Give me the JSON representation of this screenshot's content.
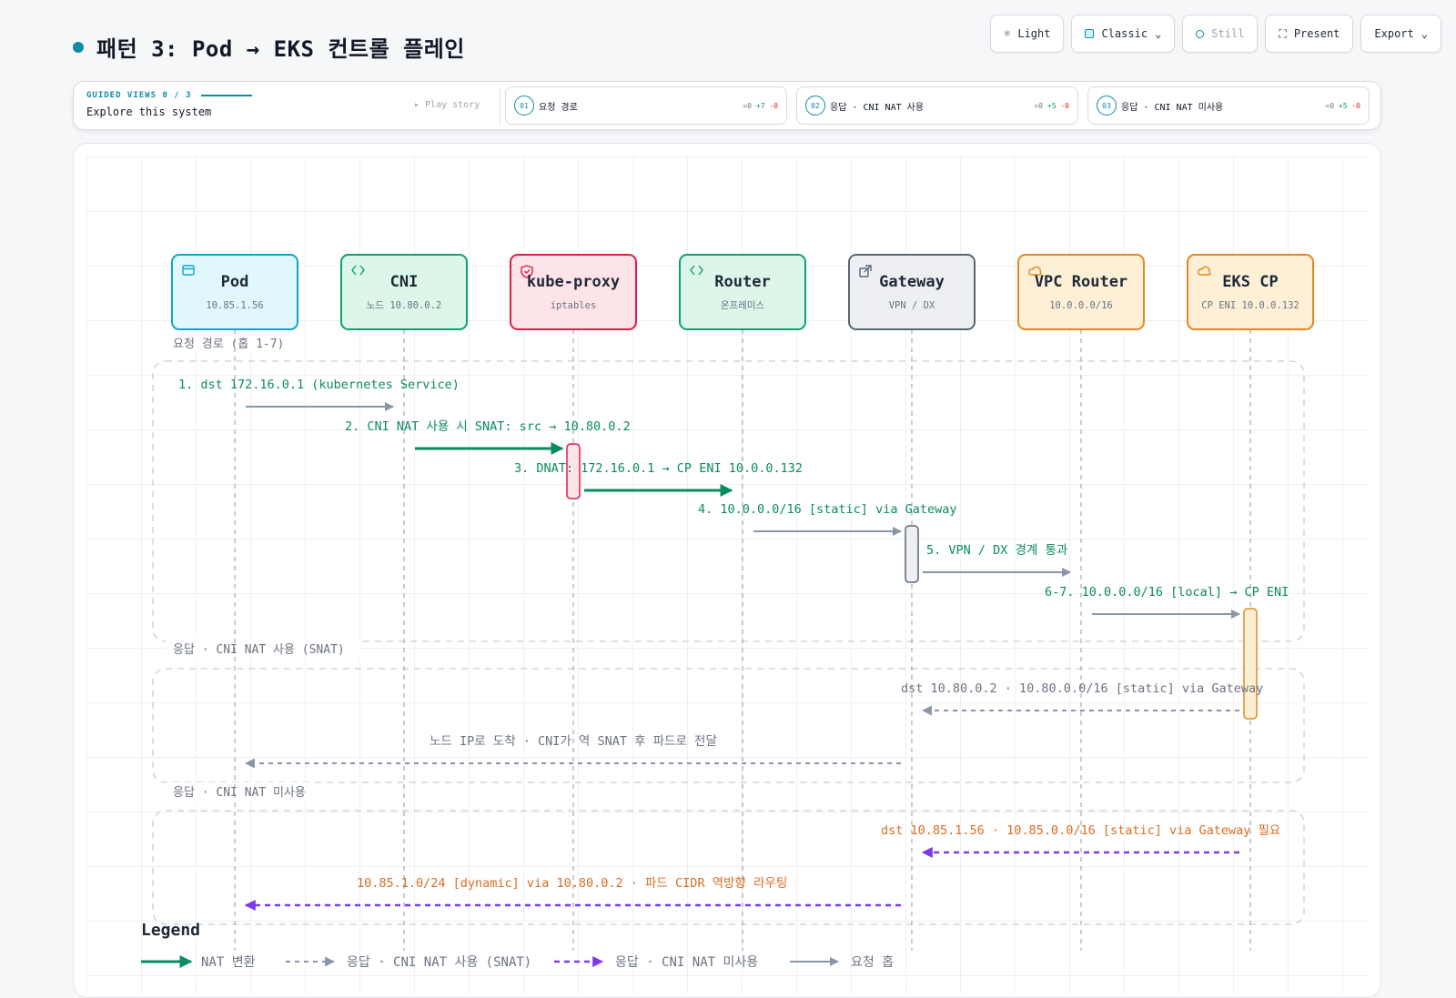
{
  "header": {
    "title": "패턴 3: Pod → EKS 컨트롤 플레인"
  },
  "toolbar": {
    "light": "Light",
    "classic": "Classic",
    "still": "Still",
    "present": "Present",
    "export": "Export"
  },
  "guided": {
    "caption": "GUIDED VIEWS 0 / 3",
    "subtitle": "Explore this system",
    "play": "▸ Play story",
    "stories": [
      {
        "num": "01",
        "label": "요청 경로",
        "eq": "=0",
        "add": "+7",
        "del": "-0"
      },
      {
        "num": "02",
        "label": "응답 · CNI NAT 사용",
        "eq": "=0",
        "add": "+5",
        "del": "-0"
      },
      {
        "num": "03",
        "label": "응답 · CNI NAT 미사용",
        "eq": "=0",
        "add": "+5",
        "del": "-0"
      }
    ]
  },
  "colors": {
    "teal": "#0e8aa8",
    "green": "#0b8a63",
    "gray": "#8a96a8",
    "orange": "#dd6b20",
    "purple": "#7c3aed",
    "red": "#e11d48"
  },
  "participants": [
    {
      "id": "pod",
      "name": "Pod",
      "sub": "10.85.1.56",
      "icon": "window-icon",
      "stroke": "#0ea5c6",
      "fill": "#e0f7fc"
    },
    {
      "id": "cni",
      "name": "CNI",
      "sub": "노드 10.80.0.2",
      "icon": "code-icon",
      "stroke": "#10a070",
      "fill": "#dcf6ea"
    },
    {
      "id": "kubeproxy",
      "name": "kube-proxy",
      "sub": "iptables",
      "icon": "shield-icon",
      "stroke": "#e11d48",
      "fill": "#fde4e8"
    },
    {
      "id": "router",
      "name": "Router",
      "sub": "온프레미스",
      "icon": "code-icon",
      "stroke": "#10a070",
      "fill": "#dcf6ea"
    },
    {
      "id": "gateway",
      "name": "Gateway",
      "sub": "VPN / DX",
      "icon": "external-link-icon",
      "stroke": "#5b6675",
      "fill": "#edeff3"
    },
    {
      "id": "vpcrouter",
      "name": "VPC Router",
      "sub": "10.0.0.0/16",
      "icon": "cloud-icon",
      "stroke": "#e08a1e",
      "fill": "#fdf0d6"
    },
    {
      "id": "ekscp",
      "name": "EKS CP",
      "sub": "CP ENI 10.0.0.132",
      "icon": "cloud-icon",
      "stroke": "#e08a1e",
      "fill": "#fdf0d6"
    }
  ],
  "groups": [
    {
      "label": "요청 경로 (홉 1-7)"
    },
    {
      "label": "응답 · CNI NAT 사용 (SNAT)"
    },
    {
      "label": "응답 · CNI NAT 미사용"
    }
  ],
  "messages": [
    {
      "from": 0,
      "to": 1,
      "style": "request",
      "label": "1. dst 172.16.0.1 (kubernetes Service)"
    },
    {
      "from": 1,
      "to": 2,
      "style": "nat",
      "label": "2. CNI NAT 사용 시 SNAT: src → 10.80.0.2"
    },
    {
      "from": 2,
      "to": 3,
      "style": "nat",
      "label": "3. DNAT: 172.16.0.1 → CP ENI 10.0.0.132"
    },
    {
      "from": 3,
      "to": 4,
      "style": "request",
      "label": "4. 10.0.0.0/16 [static] via Gateway"
    },
    {
      "from": 4,
      "to": 5,
      "style": "request",
      "label": "5. VPN / DX 경계 통과"
    },
    {
      "from": 5,
      "to": 6,
      "style": "request",
      "label": "6-7. 10.0.0.0/16 [local] → CP ENI"
    },
    {
      "from": 6,
      "to": 4,
      "style": "reply-snat",
      "label": "dst 10.80.0.2 · 10.80.0.0/16 [static] via Gateway"
    },
    {
      "from": 4,
      "to": 0,
      "style": "reply-snat",
      "label": "노드 IP로 도착 · CNI가 역 SNAT 후 파드로 전달"
    },
    {
      "from": 6,
      "to": 4,
      "style": "reply-nonat",
      "label": "dst 10.85.1.56 · 10.85.0.0/16 [static] via Gateway 필요"
    },
    {
      "from": 4,
      "to": 0,
      "style": "reply-nonat",
      "label": "10.85.1.0/24 [dynamic] via 10.80.0.2 · 파드 CIDR 역방향 라우팅"
    }
  ],
  "legend": {
    "title": "Legend",
    "items": [
      {
        "style": "nat",
        "label": "NAT 변환"
      },
      {
        "style": "reply-snat",
        "label": "응답 · CNI NAT 사용 (SNAT)"
      },
      {
        "style": "reply-nonat",
        "label": "응답 · CNI NAT 미사용"
      },
      {
        "style": "request",
        "label": "요청 홉"
      }
    ]
  }
}
